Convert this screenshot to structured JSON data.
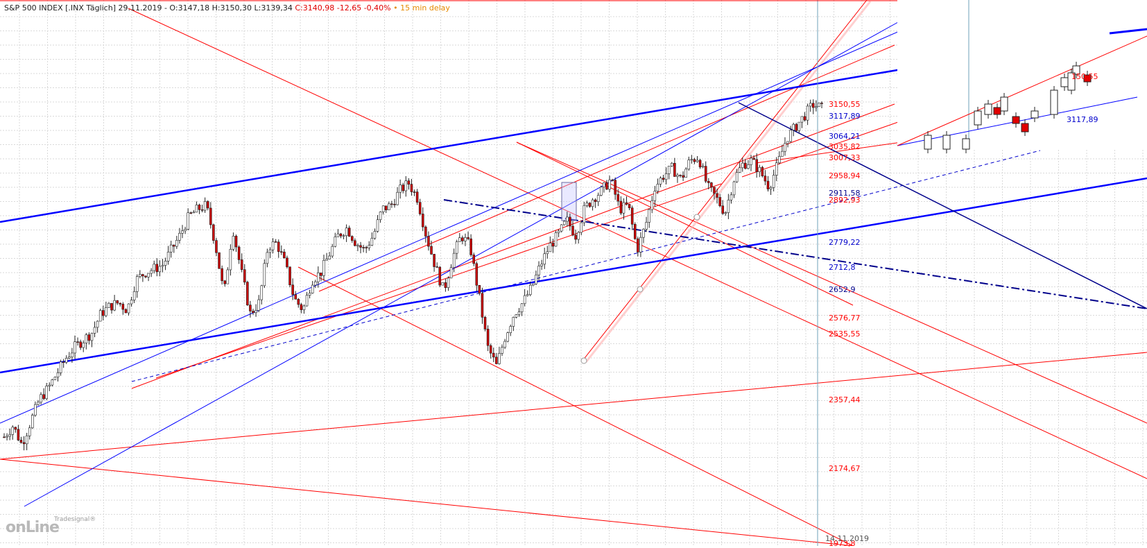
{
  "header": {
    "symbol": "S&P 500 INDEX [.INX Täglich] 29.11.2019 - O:3147,18 H:3150,30 L:3139,34",
    "change": "C:3140,98 -12,65 -0,40%",
    "delay": "• 15 min delay"
  },
  "logo": {
    "brand": "Tradesignal®",
    "word": "onLine"
  },
  "date_marker": "14.11.2019",
  "colors": {
    "red": "#ff0000",
    "blue": "#0000ff",
    "navy": "#00008b",
    "grid": "#d9d9d9",
    "vline": "#6fa0b8"
  },
  "chart_data": {
    "type": "candlestick",
    "title": "S&P 500 INDEX [.INX Täglich]",
    "date": "29.11.2019",
    "ohlc_last": {
      "open": 3147.18,
      "high": 3150.3,
      "low": 3139.34,
      "close": 3140.98,
      "change": -12.65,
      "change_pct": -0.4
    },
    "y_range": [
      1950,
      3300
    ],
    "price_levels": [
      {
        "value": "3150,55",
        "color": "red"
      },
      {
        "value": "3117,89",
        "color": "blue"
      },
      {
        "value": "3064,21",
        "color": "blue"
      },
      {
        "value": "3035,82",
        "color": "red"
      },
      {
        "value": "3007,33",
        "color": "red"
      },
      {
        "value": "2958,94",
        "color": "red"
      },
      {
        "value": "2911,58",
        "color": "navy"
      },
      {
        "value": "2892,93",
        "color": "red"
      },
      {
        "value": "2779,22",
        "color": "blue"
      },
      {
        "value": "2712,8",
        "color": "blue"
      },
      {
        "value": "2652,9",
        "color": "navy"
      },
      {
        "value": "2576,77",
        "color": "red"
      },
      {
        "value": "2535,55",
        "color": "red"
      },
      {
        "value": "2357,44",
        "color": "red"
      },
      {
        "value": "2174,67",
        "color": "red"
      },
      {
        "value": "1973,8",
        "color": "red"
      }
    ],
    "inset_labels": [
      {
        "value": "150,55",
        "color": "red"
      },
      {
        "value": "3117,89",
        "color": "blue"
      }
    ],
    "close_path": [
      2260,
      2290,
      2240,
      2300,
      2360,
      2390,
      2430,
      2470,
      2500,
      2520,
      2540,
      2590,
      2610,
      2620,
      2600,
      2680,
      2700,
      2710,
      2720,
      2760,
      2800,
      2850,
      2870,
      2880,
      2780,
      2640,
      2820,
      2700,
      2590,
      2620,
      2770,
      2780,
      2720,
      2630,
      2600,
      2680,
      2700,
      2750,
      2800,
      2820,
      2780,
      2760,
      2800,
      2870,
      2880,
      2920,
      2940,
      2900,
      2800,
      2720,
      2650,
      2740,
      2800,
      2770,
      2640,
      2500,
      2450,
      2530,
      2590,
      2620,
      2660,
      2720,
      2770,
      2800,
      2840,
      2800,
      2870,
      2900,
      2920,
      2950,
      2870,
      2880,
      2760,
      2830,
      2930,
      2960,
      2980,
      2950,
      3000,
      3010,
      2930,
      2900,
      2860,
      2950,
      2990,
      3000,
      2970,
      2930,
      2990,
      3060,
      3090,
      3120,
      3150,
      3141
    ]
  }
}
